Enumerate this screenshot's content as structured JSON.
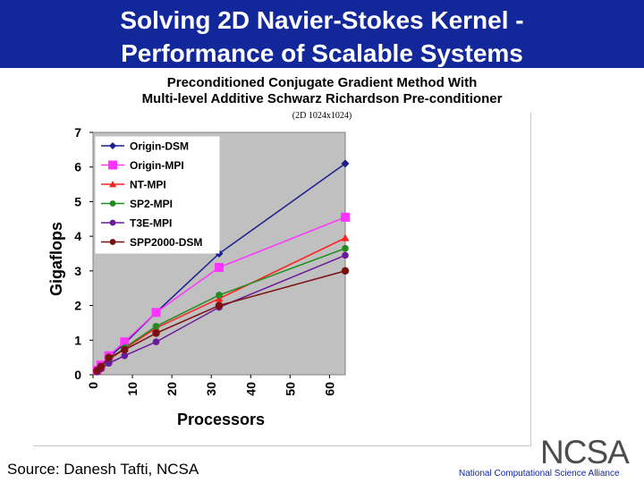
{
  "slide": {
    "title_line1": "Solving 2D Navier-Stokes Kernel -",
    "title_line2": "Performance of Scalable Systems",
    "subtitle_line1": "Preconditioned Conjugate Gradient Method With",
    "subtitle_line2": "Multi-level Additive Schwarz Richardson Pre-conditioner",
    "note": "(2D 1024x1024)",
    "source": "Source:  Danesh Tafti, NCSA",
    "logo": "NCSA",
    "logo_subtitle": "National Computational Science Alliance"
  },
  "colors": {
    "title_bar": "#12279a",
    "plot_background": "#c0c0c0"
  },
  "chart_data": {
    "type": "line",
    "xlabel": "Processors",
    "ylabel": "Gigaflops",
    "xlim": [
      0,
      64
    ],
    "ylim": [
      0,
      7
    ],
    "xticks": [
      0,
      10,
      20,
      30,
      40,
      50,
      60
    ],
    "yticks": [
      0,
      1,
      2,
      3,
      4,
      5,
      6,
      7
    ],
    "grid": false,
    "legend_position": "top-left",
    "series": [
      {
        "name": "Origin-DSM",
        "color": "#1a1f8c",
        "marker": "diamond",
        "x": [
          1,
          2,
          4,
          8,
          16,
          32,
          64
        ],
        "y": [
          0.12,
          0.25,
          0.5,
          0.9,
          1.8,
          3.5,
          6.1
        ]
      },
      {
        "name": "Origin-MPI",
        "color": "#ff33ff",
        "marker": "square",
        "x": [
          1,
          2,
          4,
          8,
          16,
          32,
          64
        ],
        "y": [
          0.13,
          0.28,
          0.55,
          0.95,
          1.8,
          3.1,
          4.55
        ]
      },
      {
        "name": "NT-MPI",
        "color": "#ff2020",
        "marker": "triangle",
        "x": [
          1,
          2,
          4,
          8,
          16,
          32,
          64
        ],
        "y": [
          0.1,
          0.2,
          0.42,
          0.75,
          1.35,
          2.2,
          3.95
        ]
      },
      {
        "name": "SP2-MPI",
        "color": "#1f8c1f",
        "marker": "circle",
        "x": [
          1,
          2,
          4,
          8,
          16,
          32,
          64
        ],
        "y": [
          0.1,
          0.2,
          0.43,
          0.78,
          1.4,
          2.3,
          3.65
        ]
      },
      {
        "name": "T3E-MPI",
        "color": "#6a1a9a",
        "marker": "circle",
        "x": [
          1,
          2,
          4,
          8,
          16,
          32,
          64
        ],
        "y": [
          0.08,
          0.17,
          0.33,
          0.55,
          0.95,
          1.95,
          3.45
        ]
      },
      {
        "name": "SPP2000-DSM",
        "color": "#7a1010",
        "marker": "circle",
        "x": [
          1,
          2,
          4,
          8,
          16,
          32,
          64
        ],
        "y": [
          0.12,
          0.24,
          0.5,
          0.72,
          1.2,
          2.0,
          3.0
        ]
      }
    ]
  }
}
